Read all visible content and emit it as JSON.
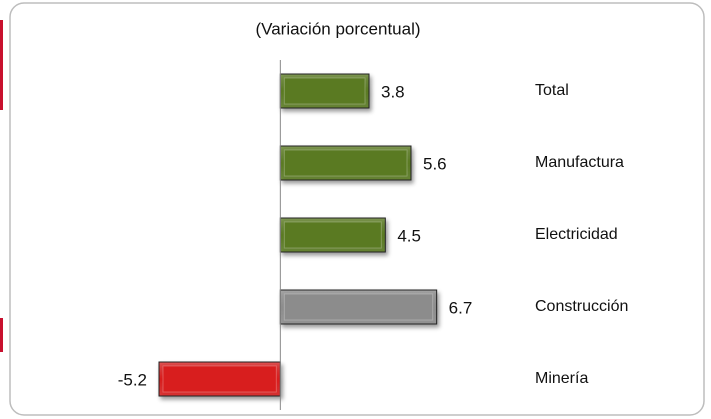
{
  "chart_data": {
    "type": "barh",
    "subtitle": "(Variación porcentual)",
    "categories": [
      "Total",
      "Manufactura",
      "Electricidad",
      "Construcción",
      "Minería"
    ],
    "values": [
      3.8,
      5.6,
      4.5,
      6.7,
      -5.2
    ],
    "colors": [
      "#5a7a22",
      "#5a7a22",
      "#5a7a22",
      "#8c8c8c",
      "#d81e1e"
    ],
    "xlim": [
      -7,
      8
    ]
  }
}
